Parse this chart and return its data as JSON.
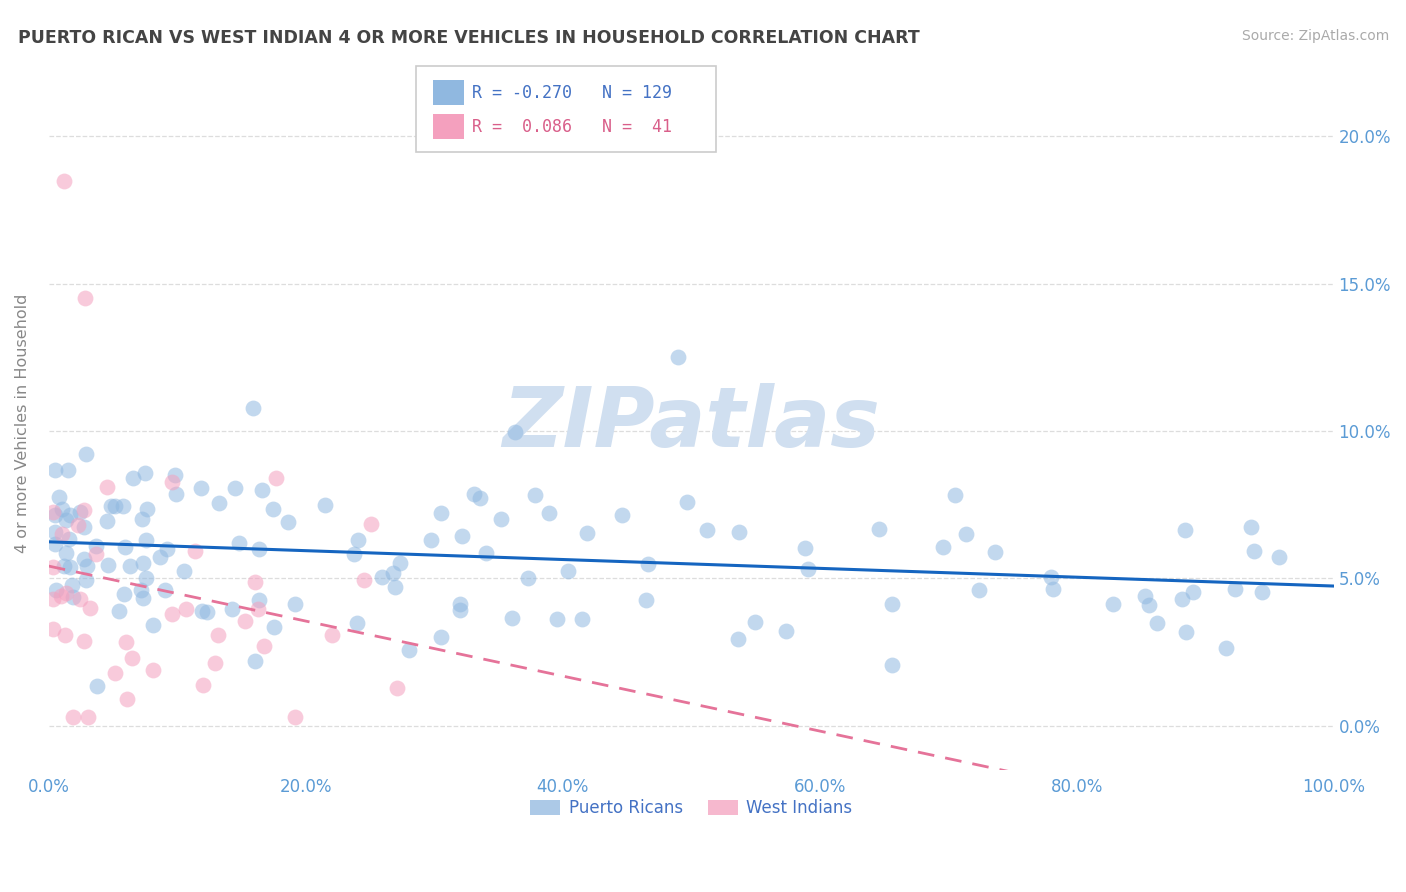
{
  "title": "PUERTO RICAN VS WEST INDIAN 4 OR MORE VEHICLES IN HOUSEHOLD CORRELATION CHART",
  "source": "Source: ZipAtlas.com",
  "ylabel": "4 or more Vehicles in Household",
  "x_min": 0.0,
  "x_max": 100.0,
  "y_min": -1.5,
  "y_max": 22.0,
  "y_ticks": [
    0.0,
    5.0,
    10.0,
    15.0,
    20.0
  ],
  "x_ticks": [
    0.0,
    20.0,
    40.0,
    60.0,
    80.0,
    100.0
  ],
  "blue_R": -0.27,
  "blue_N": 129,
  "pink_R": 0.086,
  "pink_N": 41,
  "blue_color": "#90B8E0",
  "pink_color": "#F4A0BE",
  "blue_line_color": "#1565C0",
  "pink_line_color": "#E57399",
  "axis_tick_color": "#5B9BD5",
  "ylabel_color": "#888888",
  "title_color": "#444444",
  "source_color": "#AAAAAA",
  "watermark_color": "#D0DFF0",
  "grid_color": "#DDDDDD",
  "legend_border_color": "#CCCCCC",
  "legend_blue_text_color": "#4472C4",
  "legend_pink_text_color": "#D95F8A",
  "bottom_legend_text_color": "#4472C4",
  "blue_scatter_seed": 42,
  "pink_scatter_seed": 7
}
